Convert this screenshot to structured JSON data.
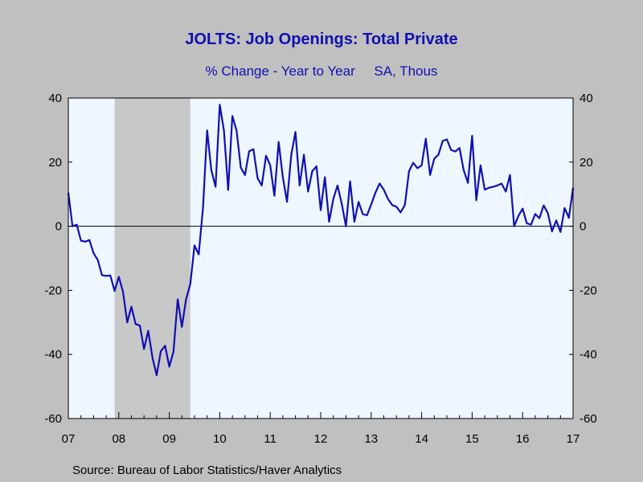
{
  "chart_data": {
    "type": "line",
    "title": "JOLTS: Job Openings: Total Private",
    "subtitle": "% Change - Year to Year     SA, Thous",
    "source": "Source:  Bureau of Labor Statistics/Haver Analytics",
    "x_tick_labels": [
      "07",
      "08",
      "09",
      "10",
      "11",
      "12",
      "13",
      "14",
      "15",
      "16",
      "17"
    ],
    "y_ticks": [
      40,
      20,
      0,
      -20,
      -40,
      -60
    ],
    "ylim": [
      -60,
      40
    ],
    "x_range": [
      "2007-01",
      "2017-01"
    ],
    "recession": {
      "start": "2007-12",
      "end": "2009-06"
    },
    "zero_line": true,
    "colors": {
      "line": "#1010b0",
      "plot_bg": "#eef6ff",
      "recession": "#c8c8c8",
      "page_bg": "#c0c0c0"
    },
    "series": [
      {
        "x": [
          "2007-01",
          "2007-02",
          "2007-03",
          "2007-04",
          "2007-05",
          "2007-06",
          "2007-07",
          "2007-08",
          "2007-09",
          "2007-10",
          "2007-11",
          "2007-12",
          "2008-01",
          "2008-02",
          "2008-03",
          "2008-04",
          "2008-05",
          "2008-06",
          "2008-07",
          "2008-08",
          "2008-09",
          "2008-10",
          "2008-11",
          "2008-12",
          "2009-01",
          "2009-02",
          "2009-03",
          "2009-04",
          "2009-05",
          "2009-06",
          "2009-07",
          "2009-08",
          "2009-09",
          "2009-10",
          "2009-11",
          "2009-12",
          "2010-01",
          "2010-02",
          "2010-03",
          "2010-04",
          "2010-05",
          "2010-06",
          "2010-07",
          "2010-08",
          "2010-09",
          "2010-10",
          "2010-11",
          "2010-12",
          "2011-01",
          "2011-02",
          "2011-03",
          "2011-04",
          "2011-05",
          "2011-06",
          "2011-07",
          "2011-08",
          "2011-09",
          "2011-10",
          "2011-11",
          "2011-12",
          "2012-01",
          "2012-02",
          "2012-03",
          "2012-04",
          "2012-05",
          "2012-06",
          "2012-07",
          "2012-08",
          "2012-09",
          "2012-10",
          "2012-11",
          "2012-12",
          "2013-01",
          "2013-02",
          "2013-03",
          "2013-04",
          "2013-05",
          "2013-06",
          "2013-07",
          "2013-08",
          "2013-09",
          "2013-10",
          "2013-11",
          "2013-12",
          "2014-01",
          "2014-02",
          "2014-03",
          "2014-04",
          "2014-05",
          "2014-06",
          "2014-07",
          "2014-08",
          "2014-09",
          "2014-10",
          "2014-11",
          "2014-12",
          "2015-01",
          "2015-02",
          "2015-03",
          "2015-04",
          "2015-05",
          "2015-06",
          "2015-07",
          "2015-08",
          "2015-09",
          "2015-10",
          "2015-11",
          "2015-12",
          "2016-01",
          "2016-02",
          "2016-03",
          "2016-04",
          "2016-05",
          "2016-06",
          "2016-07",
          "2016-08",
          "2016-09",
          "2016-10",
          "2016-11",
          "2016-12",
          "2017-01"
        ],
        "values": [
          10.5,
          0,
          0.5,
          -4.5,
          -4.8,
          -4.3,
          -8.4,
          -10.5,
          -15.3,
          -15.5,
          -15.4,
          -20.2,
          -15.8,
          -20.4,
          -30,
          -25.1,
          -30.5,
          -31,
          -38.3,
          -32.6,
          -41,
          -46.5,
          -39,
          -37.3,
          -43.8,
          -39.2,
          -22.8,
          -31.4,
          -22.8,
          -18,
          -6,
          -8.8,
          5.5,
          29.9,
          17.5,
          12.3,
          37.9,
          29.9,
          11.3,
          34.4,
          29.9,
          18.3,
          16,
          23.4,
          24,
          15,
          12.7,
          22,
          19,
          9.5,
          26.3,
          15.3,
          7.6,
          22.3,
          29.4,
          12.7,
          22.3,
          10.8,
          17.2,
          18.7,
          5,
          15.3,
          1.4,
          8.5,
          12.7,
          7,
          0,
          14,
          1.4,
          7.6,
          3.8,
          3.4,
          6.8,
          10.4,
          13.3,
          11.4,
          8.5,
          6.6,
          6.1,
          4.3,
          6.6,
          17.2,
          19.8,
          18.1,
          19,
          27.3,
          16,
          21.1,
          22.3,
          26.6,
          27.1,
          23.8,
          23.3,
          24.4,
          17.5,
          13.5,
          28.2,
          8.1,
          19,
          11.4,
          12,
          12.3,
          12.7,
          13.3,
          10.8,
          16,
          0,
          3.2,
          5.5,
          0.9,
          0.5,
          3.8,
          2.5,
          6.5,
          4.1,
          -1.6,
          1.8,
          -1.8,
          5.7,
          2.6,
          12
        ]
      }
    ]
  }
}
